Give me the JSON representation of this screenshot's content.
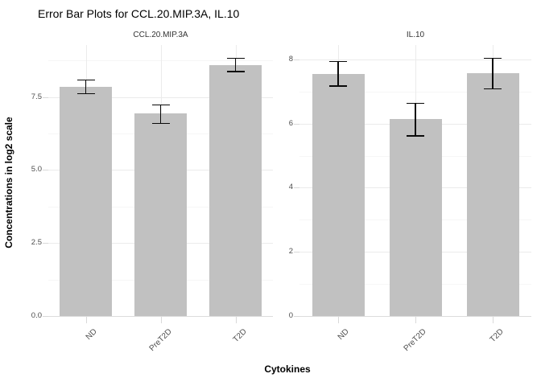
{
  "title": "Error Bar Plots for CCL.20.MIP.3A, IL.10",
  "axes": {
    "x_title": "Cytokines",
    "y_title": "Concentrations in log2 scale"
  },
  "colors": {
    "bar_fill": "#c1c1c1",
    "error_bar": "#0a0a0a",
    "grid_major": "#ebebeb",
    "grid_minor": "#f6f6f6",
    "zero_line": "#dcdcdc",
    "tick_mark": "#d9d9d9",
    "axis_text": "#4d4d4d",
    "strip_text": "#333333",
    "title_text": "#000000"
  },
  "chart_data": {
    "type": "bar",
    "title": "Error Bar Plots for CCL.20.MIP.3A, IL.10",
    "xlabel": "Cytokines",
    "ylabel": "Concentrations in log2 scale",
    "grid": true,
    "legend": false,
    "facets": "free y scales, one panel per cytokine",
    "categories": [
      "ND",
      "PreT2D",
      "T2D"
    ],
    "panels": [
      {
        "facet_label": "CCL.20.MIP.3A",
        "values": [
          7.85,
          6.93,
          8.6
        ],
        "error_upper": [
          8.1,
          7.25,
          8.85
        ],
        "error_lower": [
          7.6,
          6.58,
          8.35
        ],
        "y_tick_labels": [
          "0.0",
          "2.5",
          "5.0",
          "7.5"
        ],
        "y_tick_values": [
          0,
          2.5,
          5.0,
          7.5
        ],
        "y_minor_values": [
          1.25,
          3.75,
          6.25,
          8.75
        ],
        "ylim": [
          0,
          9.28
        ]
      },
      {
        "facet_label": "IL.10",
        "values": [
          7.55,
          6.14,
          7.57
        ],
        "error_upper": [
          7.95,
          6.65,
          8.05
        ],
        "error_lower": [
          7.15,
          5.6,
          7.07
        ],
        "y_tick_labels": [
          "0",
          "2",
          "4",
          "6",
          "8"
        ],
        "y_tick_values": [
          0,
          2,
          4,
          6,
          8
        ],
        "y_minor_values": [
          1,
          3,
          5,
          7
        ],
        "ylim": [
          0,
          8.45
        ]
      }
    ]
  }
}
